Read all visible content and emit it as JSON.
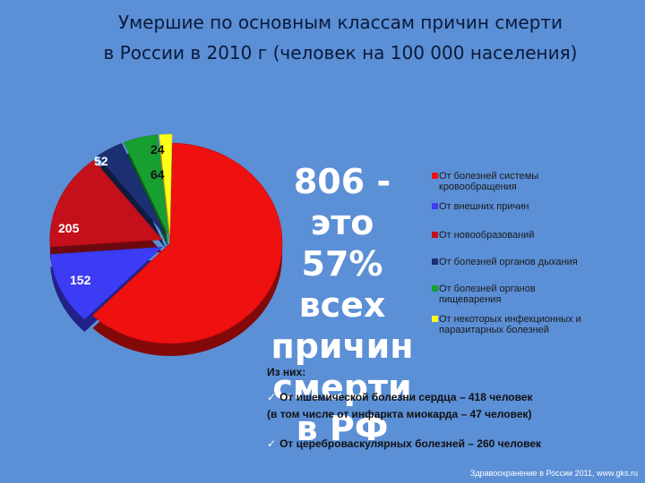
{
  "title": {
    "line1": "Умершие по основным классам причин смерти",
    "line2": "в России в 2010 г (человек на 100 000 населения)"
  },
  "chart_data": {
    "type": "pie",
    "slices": [
      {
        "label": "От болезней системы кровообращения",
        "value": 806,
        "display_value": "",
        "color": "#ef1010"
      },
      {
        "label": "От внешних причин",
        "value": 152,
        "display_value": "152",
        "color": "#3c3cf5"
      },
      {
        "label": "От новообразований",
        "value": 205,
        "display_value": "205",
        "color": "#c4101a"
      },
      {
        "label": "От болезней органов дыхания",
        "value": 52,
        "display_value": "52",
        "color": "#1c2f72"
      },
      {
        "label": "От болезней органов пищеварения",
        "value": 64,
        "display_value": "64",
        "color": "#17a030"
      },
      {
        "label": "От некоторых инфекционных и паразитарных болезней",
        "value": 24,
        "display_value": "24",
        "color": "#ffff1a"
      }
    ],
    "legend_position": "right"
  },
  "big_claim": {
    "lines": [
      "806 -",
      "это",
      "57%",
      "всех",
      "причин",
      "смерти",
      "в РФ"
    ]
  },
  "legend": {
    "items": [
      {
        "lines": [
          "От болезней системы",
          "кровообращения"
        ],
        "color": "#ef1010"
      },
      {
        "lines": [
          "От внешних причин"
        ],
        "color": "#3c3cf5"
      },
      {
        "lines": [
          "От новообразований"
        ],
        "color": "#c4101a"
      },
      {
        "lines": [
          "От болезней органов дыхания"
        ],
        "color": "#1c2f72"
      },
      {
        "lines": [
          "От болезней органов",
          "пищеварения"
        ],
        "color": "#17a030"
      },
      {
        "lines": [
          "От некоторых инфекционных и",
          "паразитарных болезней"
        ],
        "color": "#ffff1a"
      }
    ]
  },
  "notes": {
    "header": "Из них:",
    "check_mark": "✓",
    "line1": "От ишемической болезни сердца – 418  человек",
    "line2": "(в том числе от инфаркта миокарда – 47 человек)",
    "line3": "От цереброваскулярных болезней – 260  человек"
  },
  "source": "Здравоохранение в России 2011,  www.gks.ru"
}
